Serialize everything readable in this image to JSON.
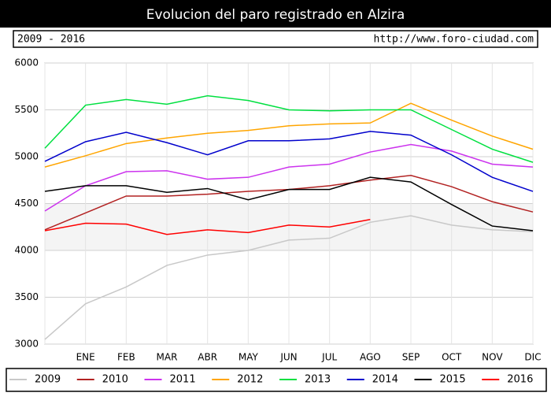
{
  "chart_data": {
    "type": "line",
    "title": "Evolucion del paro registrado en Alzira",
    "subtitle": "2009 - 2016",
    "source": "http://www.foro-ciudad.com",
    "categories": [
      null,
      "ENE",
      "FEB",
      "MAR",
      "ABR",
      "MAY",
      "JUN",
      "JUL",
      "AGO",
      "SEP",
      "OCT",
      "NOV",
      "DIC"
    ],
    "ylim": [
      3000,
      6000
    ],
    "yticks": [
      3000,
      3500,
      4000,
      4500,
      5000,
      5500,
      6000
    ],
    "grid": true,
    "legend": "bottom",
    "series": [
      {
        "name": "2009",
        "color": "#c8c8c8",
        "values": [
          3050,
          3430,
          3610,
          3840,
          3950,
          4000,
          4110,
          4130,
          4300,
          4370,
          4270,
          4220,
          4200
        ]
      },
      {
        "name": "2010",
        "color": "#b22222",
        "values": [
          4220,
          4400,
          4580,
          4580,
          4600,
          4630,
          4650,
          4690,
          4750,
          4800,
          4680,
          4520,
          4410
        ]
      },
      {
        "name": "2011",
        "color": "#cc33ee",
        "values": [
          4420,
          4690,
          4840,
          4850,
          4760,
          4780,
          4890,
          4920,
          5050,
          5130,
          5060,
          4920,
          4890
        ]
      },
      {
        "name": "2012",
        "color": "#ffa500",
        "values": [
          4890,
          5010,
          5140,
          5200,
          5250,
          5280,
          5330,
          5350,
          5360,
          5570,
          5390,
          5220,
          5080
        ]
      },
      {
        "name": "2013",
        "color": "#00e040",
        "values": [
          5090,
          5550,
          5610,
          5560,
          5650,
          5600,
          5500,
          5490,
          5500,
          5500,
          5290,
          5080,
          4940
        ]
      },
      {
        "name": "2014",
        "color": "#0000cc",
        "values": [
          4950,
          5160,
          5260,
          5150,
          5020,
          5170,
          5170,
          5190,
          5270,
          5230,
          5020,
          4780,
          4630
        ]
      },
      {
        "name": "2015",
        "color": "#000000",
        "values": [
          4630,
          4690,
          4690,
          4620,
          4660,
          4540,
          4650,
          4650,
          4780,
          4730,
          4490,
          4260,
          4210
        ]
      },
      {
        "name": "2016",
        "color": "#ff0000",
        "values": [
          4210,
          4290,
          4280,
          4170,
          4220,
          4190,
          4270,
          4250,
          4330,
          null,
          null,
          null,
          null
        ]
      }
    ]
  }
}
